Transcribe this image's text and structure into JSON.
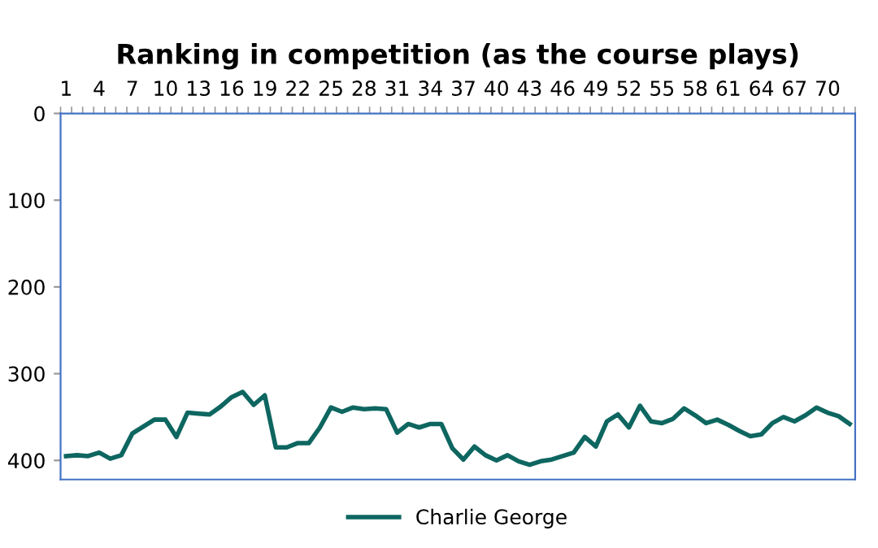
{
  "chart_data": {
    "type": "line",
    "title": "Ranking in competition (as the course plays)",
    "categories": [
      "1",
      null,
      null,
      "4",
      null,
      null,
      "7",
      null,
      null,
      "10",
      null,
      null,
      "13",
      null,
      null,
      "16",
      null,
      null,
      "19",
      null,
      null,
      "22",
      null,
      null,
      "25",
      null,
      null,
      "28",
      null,
      null,
      "31",
      null,
      null,
      "34",
      null,
      null,
      "37",
      null,
      null,
      "40",
      null,
      null,
      "43",
      null,
      null,
      "46",
      null,
      null,
      "49",
      null,
      null,
      "52",
      null,
      null,
      "55",
      null,
      null,
      "58",
      null,
      null,
      "61",
      null,
      null,
      "64",
      null,
      null,
      "67",
      null,
      null,
      "70",
      null,
      null
    ],
    "series": [
      {
        "name": "Charlie George",
        "color": "#0e6660",
        "values": [
          395,
          394,
          395,
          391,
          398,
          394,
          369,
          361,
          353,
          353,
          373,
          345,
          346,
          347,
          338,
          327,
          321,
          336,
          325,
          385,
          385,
          380,
          380,
          362,
          339,
          344,
          339,
          341,
          340,
          341,
          368,
          358,
          362,
          358,
          358,
          386,
          399,
          384,
          394,
          400,
          394,
          401,
          405,
          401,
          399,
          395,
          391,
          373,
          384,
          355,
          347,
          362,
          337,
          355,
          357,
          352,
          340,
          348,
          357,
          353,
          359,
          366,
          372,
          370,
          357,
          350,
          355,
          348,
          339,
          345,
          349,
          358
        ]
      }
    ],
    "ylim": [
      422,
      0
    ],
    "yticks": [
      0,
      100,
      200,
      300,
      400
    ],
    "grid": false,
    "legend": "bottom",
    "marker": "none",
    "line_style": "solid"
  }
}
